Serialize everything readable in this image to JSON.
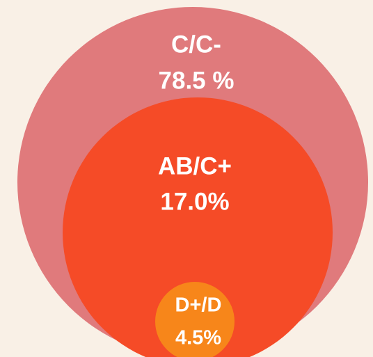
{
  "chart_data": {
    "type": "circles",
    "categories": [
      "C/C-",
      "AB/C+",
      "D+/D"
    ],
    "values": [
      78.5,
      17.0,
      4.5
    ],
    "value_labels": [
      "78.5 %",
      "17.0%",
      "4.5%"
    ],
    "colors": [
      "#e07a7c",
      "#f54b27",
      "#f7861a"
    ]
  }
}
